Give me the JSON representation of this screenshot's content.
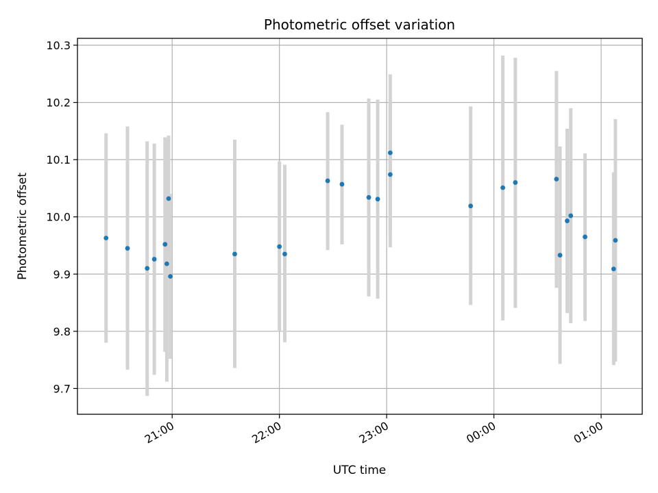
{
  "chart_data": {
    "type": "scatter",
    "title": "Photometric offset variation",
    "xlabel": "UTC time",
    "ylabel": "Photometric offset",
    "xlim_hours": [
      20.1167,
      25.3833
    ],
    "ylim": [
      9.655,
      10.312
    ],
    "grid": true,
    "x_ticks": [
      {
        "hour": 21,
        "label": "21:00"
      },
      {
        "hour": 22,
        "label": "22:00"
      },
      {
        "hour": 23,
        "label": "23:00"
      },
      {
        "hour": 24,
        "label": "00:00"
      },
      {
        "hour": 25,
        "label": "01:00"
      }
    ],
    "y_ticks": [
      {
        "value": 9.7,
        "label": "9.7"
      },
      {
        "value": 9.8,
        "label": "9.8"
      },
      {
        "value": 9.9,
        "label": "9.9"
      },
      {
        "value": 10.0,
        "label": "10.0"
      },
      {
        "value": 10.1,
        "label": "10.1"
      },
      {
        "value": 10.2,
        "label": "10.2"
      },
      {
        "value": 10.3,
        "label": "10.3"
      }
    ],
    "colors": {
      "point": "#1f77b4",
      "errorbar": "#d3d3d3",
      "grid": "#b0b0b0"
    },
    "points": [
      {
        "time": "20:23",
        "y": 9.963,
        "err_low": 9.78,
        "err_high": 10.146
      },
      {
        "time": "20:35",
        "y": 9.945,
        "err_low": 9.733,
        "err_high": 10.158
      },
      {
        "time": "20:46",
        "y": 9.91,
        "err_low": 9.687,
        "err_high": 10.132
      },
      {
        "time": "20:50",
        "y": 9.926,
        "err_low": 9.724,
        "err_high": 10.128
      },
      {
        "time": "20:56",
        "y": 9.952,
        "err_low": 9.764,
        "err_high": 10.139
      },
      {
        "time": "20:57",
        "y": 9.918,
        "err_low": 9.712,
        "err_high": 10.134
      },
      {
        "time": "20:58",
        "y": 10.032,
        "err_low": 9.922,
        "err_high": 10.142
      },
      {
        "time": "20:59",
        "y": 9.896,
        "err_low": 9.752,
        "err_high": 10.04
      },
      {
        "time": "21:35",
        "y": 9.935,
        "err_low": 9.736,
        "err_high": 10.135
      },
      {
        "time": "22:00",
        "y": 9.948,
        "err_low": 9.8,
        "err_high": 10.097
      },
      {
        "time": "22:03",
        "y": 9.935,
        "err_low": 9.781,
        "err_high": 10.091
      },
      {
        "time": "22:27",
        "y": 10.063,
        "err_low": 9.942,
        "err_high": 10.183
      },
      {
        "time": "22:35",
        "y": 10.057,
        "err_low": 9.952,
        "err_high": 10.161
      },
      {
        "time": "22:50",
        "y": 10.034,
        "err_low": 9.861,
        "err_high": 10.207
      },
      {
        "time": "22:55",
        "y": 10.031,
        "err_low": 9.857,
        "err_high": 10.205
      },
      {
        "time": "23:02",
        "y": 10.074,
        "err_low": 9.947,
        "err_high": 10.201
      },
      {
        "time": "23:02",
        "y": 10.112,
        "err_low": 9.975,
        "err_high": 10.249
      },
      {
        "time": "23:47",
        "y": 10.019,
        "err_low": 9.846,
        "err_high": 10.193
      },
      {
        "time": "00:05",
        "y": 10.051,
        "err_low": 9.819,
        "err_high": 10.282
      },
      {
        "time": "00:12",
        "y": 10.06,
        "err_low": 9.841,
        "err_high": 10.278
      },
      {
        "time": "00:35",
        "y": 10.066,
        "err_low": 9.876,
        "err_high": 10.255
      },
      {
        "time": "00:37",
        "y": 9.933,
        "err_low": 9.743,
        "err_high": 10.123
      },
      {
        "time": "00:41",
        "y": 9.993,
        "err_low": 9.832,
        "err_high": 10.154
      },
      {
        "time": "00:43",
        "y": 10.002,
        "err_low": 9.814,
        "err_high": 10.19
      },
      {
        "time": "00:51",
        "y": 9.965,
        "err_low": 9.818,
        "err_high": 10.111
      },
      {
        "time": "01:07",
        "y": 9.909,
        "err_low": 9.741,
        "err_high": 10.078
      },
      {
        "time": "01:08",
        "y": 9.959,
        "err_low": 9.747,
        "err_high": 10.171
      }
    ]
  }
}
